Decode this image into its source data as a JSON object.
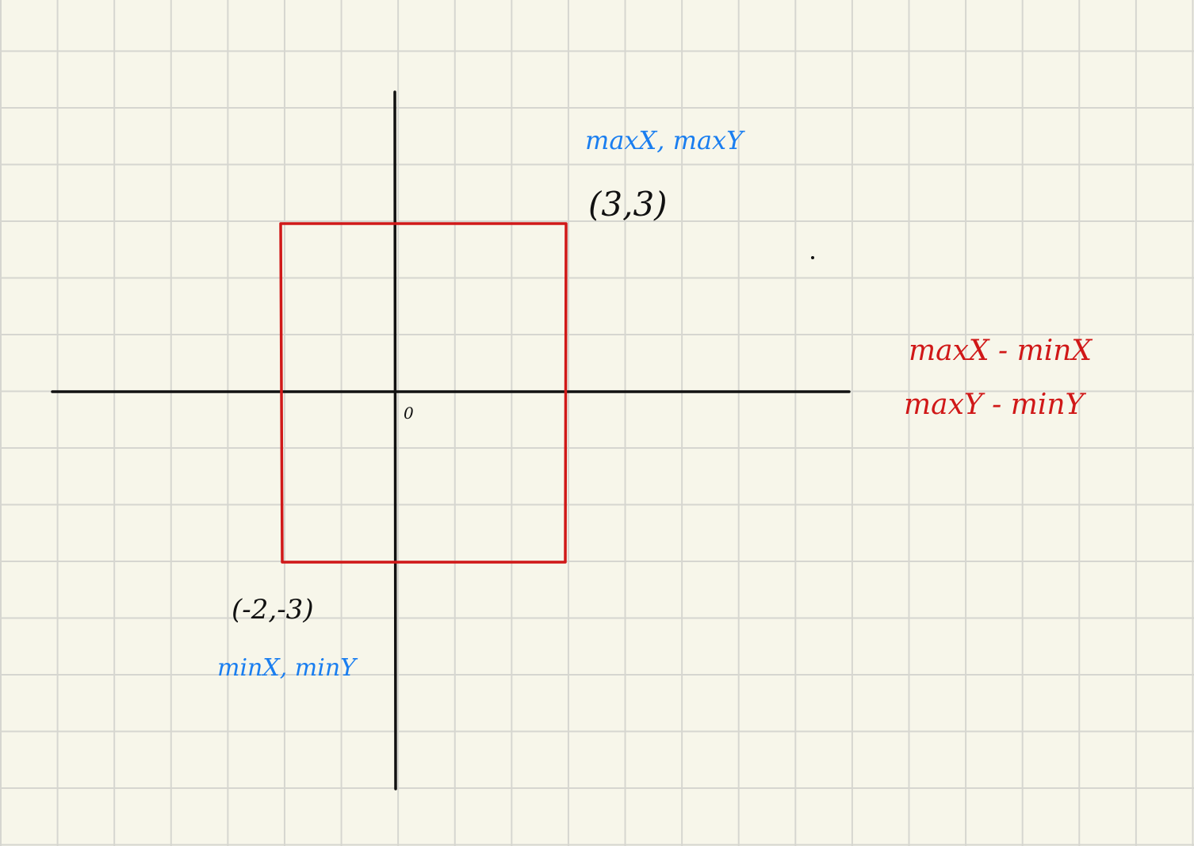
{
  "notes": {
    "origin_label": "0",
    "top_right": {
      "coords": "(3,3)",
      "caption": "maxX, maxY"
    },
    "bottom_left": {
      "coords": "(-2,-3)",
      "caption": "minX, minY"
    },
    "formulas": {
      "width": "maxX - minX",
      "height": "maxY - minY"
    }
  },
  "colors": {
    "paper": "#f7f6ea",
    "grid": "#d6d6d0",
    "axis": "#111111",
    "rectangle": "#d01818",
    "blue_ink": "#1a7ef0",
    "red_ink": "#d01818"
  }
}
